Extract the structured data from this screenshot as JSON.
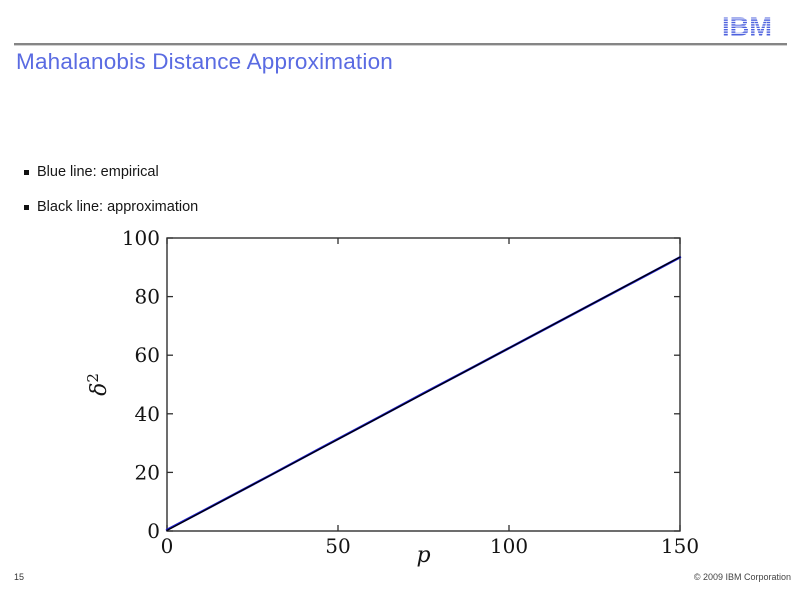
{
  "slide": {
    "title": "Mahalanobis Distance Approximation",
    "logo_text": "IBM",
    "page_number": "15",
    "copyright": "© 2009 IBM Corporation"
  },
  "bullets": [
    {
      "label": "Blue line: empirical"
    },
    {
      "label": "Black line: approximation"
    }
  ],
  "colors": {
    "title": "#5a6be2",
    "logo": "#4d61de",
    "empirical_line": "#1c1ccd",
    "approximation_line": "#000000",
    "axis": "#2f2f2f"
  },
  "chart_data": {
    "type": "line",
    "title": "",
    "xlabel": "p",
    "ylabel_base": "δ",
    "ylabel_exponent": "2",
    "xlim": [
      0,
      150
    ],
    "ylim": [
      0,
      100
    ],
    "xticks": [
      0,
      50,
      100,
      150
    ],
    "yticks": [
      0,
      20,
      40,
      60,
      80,
      100
    ],
    "grid": false,
    "legend": "none",
    "box": true,
    "series": [
      {
        "name": "empirical",
        "color": "#1c1ccd",
        "width": 2.4,
        "x": [
          0,
          15,
          30,
          45,
          60,
          75,
          90,
          105,
          120,
          135,
          150
        ],
        "y": [
          0.4,
          9.6,
          18.9,
          28.3,
          37.6,
          47.0,
          56.2,
          65.5,
          74.8,
          84.1,
          93.4
        ]
      },
      {
        "name": "approximation",
        "color": "#000000",
        "width": 1.3,
        "x": [
          0,
          150
        ],
        "y": [
          0.2,
          93.5
        ]
      }
    ]
  }
}
